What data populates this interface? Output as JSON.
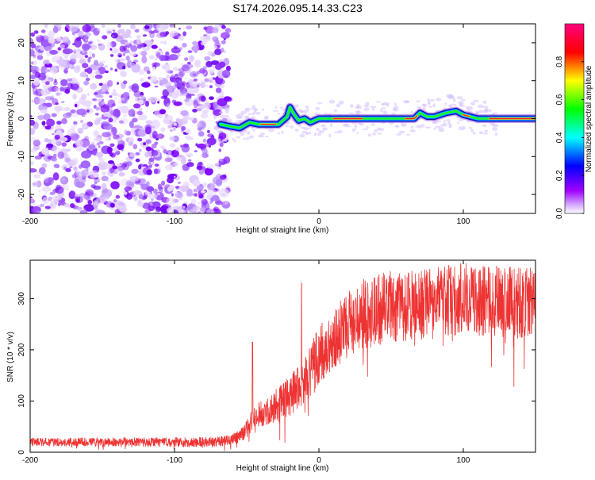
{
  "title": "S174.2026.095.14.33.C23",
  "chart_data": [
    {
      "type": "heatmap",
      "name": "spectrogram",
      "xlabel": "Height of straight line (km)",
      "ylabel": "Frequency (Hz)",
      "xlim": [
        -200,
        150
      ],
      "ylim": [
        -25,
        25
      ],
      "xticks": [
        -200,
        -100,
        0,
        100
      ],
      "xtick_labels": [
        "-200",
        "-100",
        "0",
        "100"
      ],
      "yticks": [
        -20,
        -10,
        0,
        10,
        20
      ],
      "ytick_labels": [
        "-20",
        "-10",
        "0",
        "10",
        "20"
      ],
      "noise_region_x": [
        -200,
        -66
      ],
      "signal_track": {
        "x": [
          -68,
          -62,
          -55,
          -48,
          -42,
          -35,
          -28,
          -22,
          -20,
          -17,
          -14,
          -10,
          -6,
          0,
          10,
          20,
          30,
          40,
          50,
          60,
          66,
          70,
          75,
          80,
          88,
          95,
          100,
          110,
          120,
          150
        ],
        "freq": [
          -1.5,
          -2.0,
          -2.5,
          -1.0,
          -1.5,
          -1.5,
          -1.5,
          0.5,
          3.0,
          1.0,
          -0.5,
          0.0,
          -1.0,
          0.0,
          0.0,
          0.0,
          0.0,
          0.0,
          0.0,
          0.0,
          0.0,
          1.5,
          0.5,
          0.5,
          1.5,
          2.0,
          1.0,
          0.0,
          0.0,
          0.0
        ]
      },
      "colorbar": {
        "label": "Normalized spectral amplitude",
        "range": [
          0,
          1
        ],
        "ticks": [
          0.0,
          0.2,
          0.4,
          0.6,
          0.8
        ],
        "tick_labels": [
          "0.0",
          "0.2",
          "0.4",
          "0.6",
          "0.8"
        ],
        "colors": [
          "#ffffff",
          "#a000ff",
          "#0000ff",
          "#00ffff",
          "#00ff00",
          "#ffff00",
          "#ff0000",
          "#ff0080"
        ]
      }
    },
    {
      "type": "line",
      "name": "snr",
      "xlabel": "Height of straight line (km)",
      "ylabel": "SNR (10 * v/v)",
      "xlim": [
        -200,
        150
      ],
      "ylim": [
        0,
        375
      ],
      "xticks": [
        -200,
        -100,
        0,
        100
      ],
      "xtick_labels": [
        "-200",
        "-100",
        "0",
        "100"
      ],
      "yticks": [
        0,
        100,
        200,
        300
      ],
      "ytick_labels": [
        "0",
        "100",
        "200",
        "300"
      ],
      "color": "#ee3333",
      "trend": {
        "x": [
          -200,
          -150,
          -100,
          -75,
          -65,
          -55,
          -50,
          -45,
          -40,
          -30,
          -20,
          -10,
          0,
          10,
          20,
          30,
          50,
          80,
          100,
          120,
          150
        ],
        "y": [
          20,
          20,
          20,
          20,
          22,
          30,
          45,
          70,
          75,
          90,
          110,
          140,
          190,
          220,
          250,
          270,
          285,
          290,
          300,
          295,
          290
        ]
      },
      "noise_amplitude": {
        "x": [
          -200,
          -60,
          -40,
          0,
          30,
          150
        ],
        "y": [
          8,
          10,
          25,
          55,
          70,
          70
        ]
      },
      "spikes": [
        {
          "x": -46,
          "y": 215
        },
        {
          "x": -12,
          "y": 330
        },
        {
          "x": 62,
          "y": 350
        },
        {
          "x": 90,
          "y": 365
        }
      ]
    }
  ]
}
